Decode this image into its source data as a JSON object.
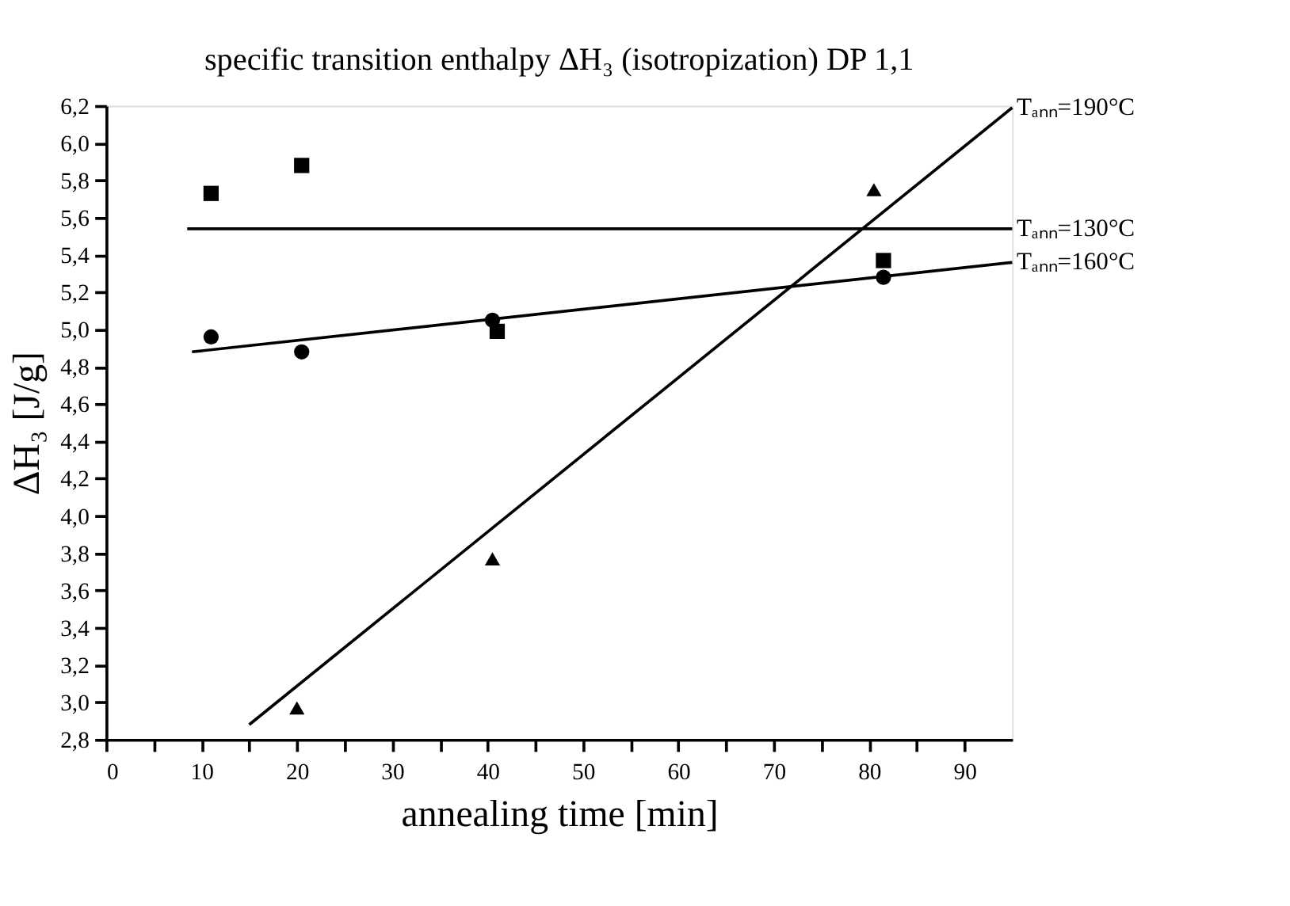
{
  "chart_data": {
    "type": "scatter",
    "title": "specific transition enthalpy ΔH₃ (isotropization) DP 1,1",
    "xlabel": "annealing time [min]",
    "ylabel": "ΔH₃ [J/g]",
    "xlim": [
      0,
      95
    ],
    "ylim": [
      2.8,
      6.2
    ],
    "xticks": [
      0,
      {
        "value": 5,
        "label": null
      },
      10,
      {
        "value": 15,
        "label": null
      },
      20,
      {
        "value": 25,
        "label": null
      },
      30,
      {
        "value": 35,
        "label": null
      },
      40,
      {
        "value": 45,
        "label": null
      },
      50,
      {
        "value": 55,
        "label": null
      },
      60,
      {
        "value": 65,
        "label": null
      },
      70,
      {
        "value": 75,
        "label": null
      },
      80,
      {
        "value": 85,
        "label": null
      },
      90
    ],
    "yticks": [
      {
        "value": 2.8,
        "label": "2,8"
      },
      {
        "value": 3.0,
        "label": "3,0"
      },
      {
        "value": 3.2,
        "label": "3,2"
      },
      {
        "value": 3.4,
        "label": "3,4"
      },
      {
        "value": 3.6,
        "label": "3,6"
      },
      {
        "value": 3.8,
        "label": "3,8"
      },
      {
        "value": 4.0,
        "label": "4,0"
      },
      {
        "value": 4.2,
        "label": "4,2"
      },
      {
        "value": 4.4,
        "label": "4,4"
      },
      {
        "value": 4.6,
        "label": "4,6"
      },
      {
        "value": 4.8,
        "label": "4,8"
      },
      {
        "value": 5.0,
        "label": "5,0"
      },
      {
        "value": 5.2,
        "label": "5,2"
      },
      {
        "value": 5.4,
        "label": "5,4"
      },
      {
        "value": 5.6,
        "label": "5,6"
      },
      {
        "value": 5.8,
        "label": "5,8"
      },
      {
        "value": 6.0,
        "label": "6,0"
      },
      {
        "value": 6.2,
        "label": "6,2"
      }
    ],
    "grid": false,
    "legend": false,
    "series": [
      {
        "marker": "square",
        "color": "#000000",
        "x": [
          11,
          20.5,
          41,
          81.5
        ],
        "values": [
          5.73,
          5.88,
          4.99,
          5.37
        ]
      },
      {
        "marker": "circle",
        "color": "#000000",
        "x": [
          11,
          20.5,
          40.5,
          81.5
        ],
        "values": [
          4.96,
          4.88,
          5.05,
          5.28
        ]
      },
      {
        "marker": "triangle",
        "color": "#000000",
        "x": [
          20,
          40.5,
          80.5
        ],
        "values": [
          2.97,
          3.77,
          5.75
        ]
      },
      {
        "type": "line",
        "name": "Tₐₙₙ=130°C",
        "color": "#000000",
        "line_style": "solid",
        "marker": "none",
        "x": [
          8.5,
          95
        ],
        "values": [
          5.54,
          5.54
        ]
      },
      {
        "type": "line",
        "name": "Tₐₙₙ=160°C",
        "color": "#000000",
        "line_style": "solid",
        "marker": "none",
        "x": [
          9,
          95
        ],
        "values": [
          4.88,
          5.36
        ]
      },
      {
        "type": "line",
        "name": "Tₐₙₙ=190°C",
        "color": "#000000",
        "line_style": "solid",
        "marker": "none",
        "x": [
          15,
          95
        ],
        "values": [
          2.88,
          6.19
        ]
      }
    ]
  }
}
